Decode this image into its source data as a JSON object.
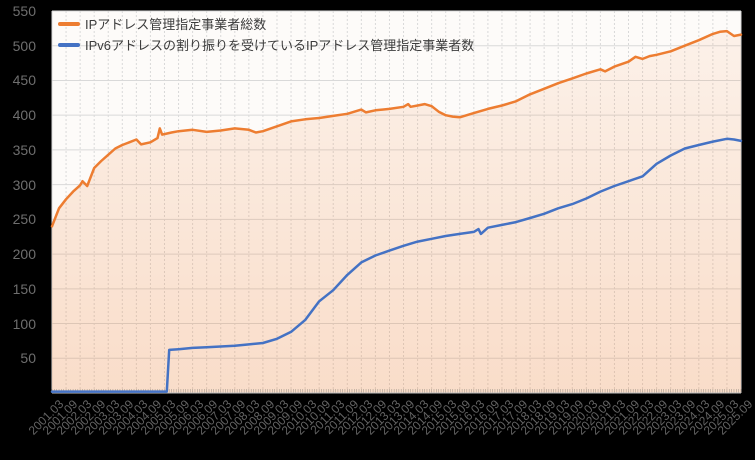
{
  "page": {
    "background": "#000000",
    "plot_background": "#FDFBF9"
  },
  "chart_data": {
    "type": "line",
    "title": "",
    "xlabel": "",
    "ylabel": "",
    "ylim": [
      0,
      550
    ],
    "y_ticks": [
      550,
      500,
      450,
      400,
      350,
      300,
      250,
      200,
      150,
      100,
      50
    ],
    "grid": true,
    "x_minor_ticks": "monthly",
    "legend_position": "top-left-inside",
    "grid_color": "#D9D9D9",
    "axis_text_color": "#666666",
    "x_tick_labels": [
      "2001.03",
      "2001.09",
      "2002.03",
      "2002.09",
      "2003.03",
      "2003.09",
      "2004.03",
      "2004.09",
      "2005.03",
      "2005.09",
      "2006.03",
      "2006.09",
      "2007.03",
      "2007.09",
      "2008.03",
      "2008.09",
      "2009.03",
      "2009.09",
      "2010.03",
      "2010.09",
      "2011.03",
      "2011.09",
      "2012.03",
      "2012.09",
      "2013.03",
      "2013.09",
      "2014.03",
      "2014.09",
      "2015.03",
      "2015.09",
      "2016.03",
      "2016.09",
      "2017.03",
      "2017.09",
      "2018.03",
      "2018.09",
      "2019.03",
      "2019.09",
      "2020.03",
      "2020.09",
      "2021.03",
      "2021.09",
      "2022.03",
      "2022.09",
      "2023.03",
      "2023.09",
      "2024.03",
      "2024.09",
      "2025.03",
      "2025.09"
    ],
    "series": [
      {
        "name": "IPアドレス管理指定事業者総数",
        "color": "#ED7D31",
        "area_fill": true,
        "area_fill_top_alpha": 0.07,
        "area_fill_bottom_alpha": 0.24,
        "points": [
          [
            "2001.03",
            240
          ],
          [
            "2001.06",
            266
          ],
          [
            "2001.09",
            279
          ],
          [
            "2001.12",
            290
          ],
          [
            "2002.03",
            299
          ],
          [
            "2002.04",
            305
          ],
          [
            "2002.06",
            298
          ],
          [
            "2002.09",
            324
          ],
          [
            "2002.12",
            334
          ],
          [
            "2003.03",
            343
          ],
          [
            "2003.06",
            352
          ],
          [
            "2003.09",
            357
          ],
          [
            "2003.12",
            361
          ],
          [
            "2004.03",
            365
          ],
          [
            "2004.05",
            358
          ],
          [
            "2004.09",
            361
          ],
          [
            "2004.12",
            367
          ],
          [
            "2005.01",
            381
          ],
          [
            "2005.02",
            372
          ],
          [
            "2005.06",
            375
          ],
          [
            "2005.09",
            377
          ],
          [
            "2006.03",
            379
          ],
          [
            "2006.09",
            376
          ],
          [
            "2007.03",
            378
          ],
          [
            "2007.09",
            381
          ],
          [
            "2008.03",
            379
          ],
          [
            "2008.06",
            375
          ],
          [
            "2008.09",
            377
          ],
          [
            "2009.03",
            384
          ],
          [
            "2009.09",
            391
          ],
          [
            "2010.03",
            394
          ],
          [
            "2010.09",
            396
          ],
          [
            "2011.03",
            399
          ],
          [
            "2011.09",
            402
          ],
          [
            "2012.03",
            408
          ],
          [
            "2012.05",
            404
          ],
          [
            "2012.09",
            407
          ],
          [
            "2013.03",
            409
          ],
          [
            "2013.09",
            412
          ],
          [
            "2013.11",
            416
          ],
          [
            "2013.12",
            412
          ],
          [
            "2014.03",
            414
          ],
          [
            "2014.06",
            416
          ],
          [
            "2014.09",
            413
          ],
          [
            "2014.12",
            405
          ],
          [
            "2015.03",
            400
          ],
          [
            "2015.06",
            398
          ],
          [
            "2015.09",
            397
          ],
          [
            "2016.03",
            403
          ],
          [
            "2016.09",
            409
          ],
          [
            "2017.03",
            414
          ],
          [
            "2017.09",
            420
          ],
          [
            "2018.03",
            430
          ],
          [
            "2018.09",
            438
          ],
          [
            "2019.03",
            446
          ],
          [
            "2019.09",
            453
          ],
          [
            "2020.03",
            460
          ],
          [
            "2020.09",
            466
          ],
          [
            "2020.11",
            463
          ],
          [
            "2021.03",
            470
          ],
          [
            "2021.09",
            477
          ],
          [
            "2021.12",
            484
          ],
          [
            "2022.03",
            481
          ],
          [
            "2022.06",
            485
          ],
          [
            "2022.09",
            487
          ],
          [
            "2023.03",
            492
          ],
          [
            "2023.09",
            500
          ],
          [
            "2024.03",
            508
          ],
          [
            "2024.09",
            517
          ],
          [
            "2024.12",
            520
          ],
          [
            "2025.03",
            521
          ],
          [
            "2025.06",
            514
          ],
          [
            "2025.09",
            516
          ]
        ]
      },
      {
        "name": "IPv6アドレスの割り振りを受けているIPアドレス管理指定事業者数",
        "color": "#4472C4",
        "area_fill": false,
        "points": [
          [
            "2001.03",
            2
          ],
          [
            "2005.04",
            2
          ],
          [
            "2005.05",
            62
          ],
          [
            "2005.09",
            63
          ],
          [
            "2006.03",
            65
          ],
          [
            "2006.09",
            66
          ],
          [
            "2007.03",
            67
          ],
          [
            "2007.09",
            68
          ],
          [
            "2008.03",
            70
          ],
          [
            "2008.09",
            72
          ],
          [
            "2009.03",
            78
          ],
          [
            "2009.09",
            88
          ],
          [
            "2010.03",
            105
          ],
          [
            "2010.09",
            132
          ],
          [
            "2011.03",
            148
          ],
          [
            "2011.09",
            170
          ],
          [
            "2012.03",
            188
          ],
          [
            "2012.09",
            198
          ],
          [
            "2013.03",
            205
          ],
          [
            "2013.09",
            212
          ],
          [
            "2014.03",
            218
          ],
          [
            "2014.09",
            222
          ],
          [
            "2015.03",
            226
          ],
          [
            "2015.09",
            229
          ],
          [
            "2016.03",
            232
          ],
          [
            "2016.05",
            236
          ],
          [
            "2016.06",
            229
          ],
          [
            "2016.09",
            238
          ],
          [
            "2017.03",
            242
          ],
          [
            "2017.09",
            246
          ],
          [
            "2018.03",
            252
          ],
          [
            "2018.09",
            258
          ],
          [
            "2019.03",
            266
          ],
          [
            "2019.09",
            272
          ],
          [
            "2020.03",
            280
          ],
          [
            "2020.09",
            290
          ],
          [
            "2021.03",
            298
          ],
          [
            "2021.09",
            305
          ],
          [
            "2022.03",
            312
          ],
          [
            "2022.09",
            330
          ],
          [
            "2023.03",
            342
          ],
          [
            "2023.09",
            352
          ],
          [
            "2024.03",
            357
          ],
          [
            "2024.09",
            362
          ],
          [
            "2025.03",
            366
          ],
          [
            "2025.06",
            365
          ],
          [
            "2025.09",
            363
          ]
        ]
      }
    ]
  }
}
